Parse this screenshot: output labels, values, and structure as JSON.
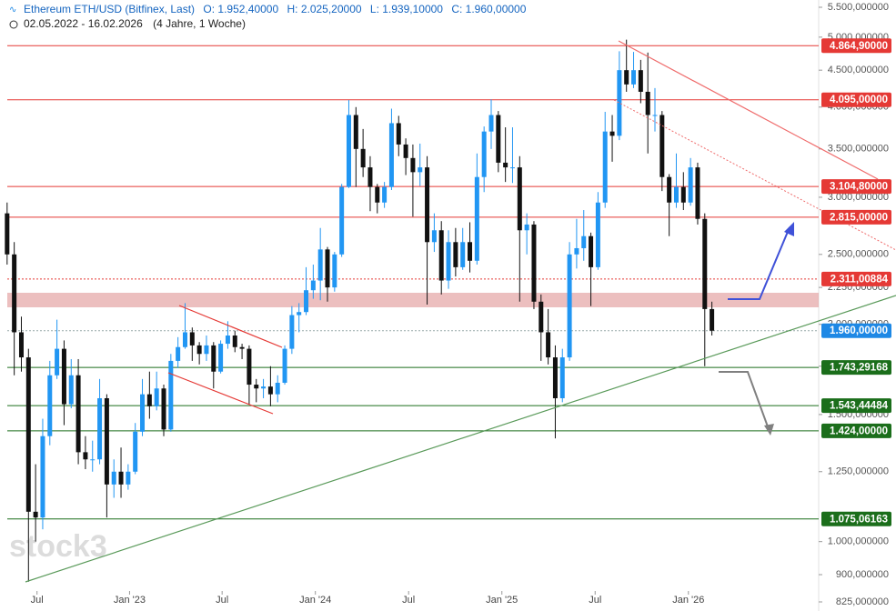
{
  "chart_data": {
    "type": "candlestick",
    "title": "Ethereum ETH/USD (Bitfinex, Last)",
    "ohlc_header": [
      "O: 1.952,40000",
      "H: 2.025,20000",
      "L: 1.939,10000",
      "C: 1.960,00000"
    ],
    "period": "02.05.2022 - 16.02.2026",
    "period_note": "(4 Jahre, 1 Woche)",
    "watermark": "stock3",
    "up_color": "#2196f3",
    "down_color": "#111111",
    "log_scale": true,
    "xlim": [
      -1,
      114
    ],
    "xticks": [
      {
        "value": 4.2,
        "label": "Jul"
      },
      {
        "value": 17.2,
        "label": "Jan '23"
      },
      {
        "value": 30.2,
        "label": "Jul"
      },
      {
        "value": 43.3,
        "label": "Jan '24"
      },
      {
        "value": 56.4,
        "label": "Jul"
      },
      {
        "value": 69.5,
        "label": "Jan '25"
      },
      {
        "value": 82.6,
        "label": "Jul"
      },
      {
        "value": 95.7,
        "label": "Jan '26"
      }
    ],
    "ylim": [
      825,
      5500
    ],
    "yticks": [
      {
        "value": 825,
        "label": "825,000000"
      },
      {
        "value": 900,
        "label": "900,000000"
      },
      {
        "value": 1000,
        "label": "1.000,000000"
      },
      {
        "value": 1250,
        "label": "1.250,000000"
      },
      {
        "value": 1500,
        "label": "1.500,000000"
      },
      {
        "value": 1750,
        "label": "1.750,000000"
      },
      {
        "value": 2000,
        "label": "2.000,000000"
      },
      {
        "value": 2250,
        "label": "2.250,000000"
      },
      {
        "value": 2500,
        "label": "2.500,000000"
      },
      {
        "value": 3000,
        "label": "3.000,000000"
      },
      {
        "value": 3500,
        "label": "3.500,000000"
      },
      {
        "value": 4000,
        "label": "4.000,000000"
      },
      {
        "value": 4500,
        "label": "4.500,000000"
      },
      {
        "value": 5000,
        "label": "5.000,000000"
      },
      {
        "value": 5500,
        "label": "5.500,000000"
      }
    ],
    "levels": [
      {
        "value": 4864.9,
        "label": "4.864,90000",
        "color": "#e53935",
        "dashed": false
      },
      {
        "value": 4095,
        "label": "4.095,00000",
        "color": "#e53935",
        "dashed": false
      },
      {
        "value": 3104.8,
        "label": "3.104,80000",
        "color": "#e53935",
        "dashed": false
      },
      {
        "value": 2815,
        "label": "2.815,00000",
        "color": "#e53935",
        "dashed": false
      },
      {
        "value": 2311.00884,
        "label": "2.311,00884",
        "color": "#e53935",
        "dashed": true
      },
      {
        "value": 1960,
        "label": "1.960,00000",
        "color": "#1e88e5",
        "dashed": true
      },
      {
        "value": 1743.29168,
        "label": "1.743,29168",
        "color": "#1b6e1b",
        "dashed": false
      },
      {
        "value": 1543.44484,
        "label": "1.543,44484",
        "color": "#1b6e1b",
        "dashed": false
      },
      {
        "value": 1424,
        "label": "1.424,00000",
        "color": "#1b6e1b",
        "dashed": false
      },
      {
        "value": 1075.06163,
        "label": "1.075,06163",
        "color": "#1b6e1b",
        "dashed": false
      }
    ],
    "open": [
      2850,
      2500,
      1950,
      1800,
      1100,
      1080,
      1400,
      1700,
      1850,
      1550,
      1700,
      1330,
      1300,
      1300,
      1580,
      1200,
      1250,
      1200,
      1250,
      1420,
      1600,
      1540,
      1630,
      1430,
      1780,
      1860,
      1950,
      1870,
      1820,
      1870,
      1720,
      1880,
      1930,
      1860,
      1850,
      1650,
      1630,
      1640,
      1600,
      1660,
      1850,
      2060,
      2080,
      2230,
      2300,
      2540,
      2250,
      2500,
      3100,
      3900,
      3500,
      3300,
      3100,
      2950,
      3100,
      3800,
      3550,
      3400,
      3250,
      3300,
      2600,
      2700,
      2300,
      2600,
      2400,
      2600,
      2450,
      3200,
      3700,
      3900,
      3350,
      3300,
      3300,
      2700,
      2750,
      2150,
      1950,
      1800,
      1580,
      1800,
      2500,
      2550,
      2650,
      2400,
      2950,
      3700,
      3650,
      4500,
      4300,
      4500,
      4200,
      3900,
      3900,
      3200,
      2950,
      3100,
      2950,
      3300,
      2800,
      2100
    ],
    "high": [
      2950,
      2600,
      2050,
      1850,
      1280,
      1480,
      1780,
      2030,
      1900,
      1790,
      1790,
      1400,
      1380,
      1680,
      1600,
      1300,
      1350,
      1280,
      1460,
      1680,
      1720,
      1720,
      1650,
      1820,
      1920,
      2140,
      1980,
      1890,
      1930,
      1890,
      1900,
      2020,
      1960,
      1880,
      1870,
      1680,
      1680,
      1750,
      1700,
      1870,
      2120,
      2140,
      2400,
      2420,
      2720,
      2560,
      2520,
      3130,
      4090,
      4000,
      3730,
      3420,
      3130,
      3150,
      3980,
      3890,
      3620,
      3550,
      3560,
      3420,
      2850,
      2780,
      2700,
      2720,
      2720,
      2770,
      3450,
      3760,
      4100,
      3950,
      3750,
      3750,
      3420,
      2850,
      2780,
      2200,
      2100,
      1870,
      1850,
      2600,
      2800,
      2880,
      2680,
      3050,
      3940,
      3900,
      4780,
      4960,
      4770,
      4650,
      4760,
      4250,
      3950,
      3230,
      3450,
      3250,
      3400,
      3350,
      2850,
      2150
    ],
    "low": [
      2420,
      1700,
      1720,
      880,
      1000,
      1040,
      1360,
      1680,
      1450,
      1530,
      1280,
      1260,
      1250,
      1280,
      1080,
      1150,
      1150,
      1180,
      1240,
      1400,
      1480,
      1520,
      1400,
      1420,
      1740,
      1850,
      1780,
      1760,
      1780,
      1630,
      1710,
      1850,
      1830,
      1790,
      1550,
      1560,
      1580,
      1540,
      1560,
      1650,
      1820,
      1950,
      2060,
      2170,
      2160,
      2150,
      2220,
      2480,
      3090,
      3100,
      3200,
      2870,
      2850,
      2900,
      3070,
      3420,
      3220,
      2820,
      3110,
      2130,
      2520,
      2200,
      2240,
      2330,
      2380,
      2360,
      2420,
      3050,
      3500,
      3250,
      3150,
      3140,
      2150,
      2500,
      2100,
      1780,
      1760,
      1390,
      1560,
      1780,
      2390,
      2450,
      2120,
      2380,
      2900,
      3360,
      3600,
      4200,
      4250,
      4050,
      3450,
      3700,
      3060,
      2650,
      2900,
      2880,
      2920,
      2750,
      1750,
      1930
    ],
    "close": [
      2500,
      1950,
      1800,
      1100,
      1080,
      1400,
      1700,
      1850,
      1550,
      1700,
      1330,
      1300,
      1300,
      1580,
      1200,
      1250,
      1200,
      1250,
      1420,
      1600,
      1540,
      1630,
      1430,
      1780,
      1860,
      1950,
      1870,
      1820,
      1870,
      1720,
      1880,
      1930,
      1860,
      1850,
      1650,
      1630,
      1640,
      1600,
      1660,
      1850,
      2060,
      2080,
      2230,
      2300,
      2540,
      2250,
      2500,
      3100,
      3900,
      3500,
      3300,
      3100,
      2950,
      3100,
      3800,
      3550,
      3400,
      3250,
      3300,
      2600,
      2700,
      2300,
      2600,
      2400,
      2600,
      2450,
      3200,
      3700,
      3900,
      3350,
      3300,
      3300,
      2700,
      2750,
      2150,
      1950,
      1800,
      1580,
      1800,
      2500,
      2550,
      2650,
      2400,
      2950,
      3700,
      3650,
      4500,
      4300,
      4500,
      4200,
      3900,
      3900,
      3200,
      2950,
      3100,
      2950,
      3300,
      2800,
      2100,
      1960
    ]
  }
}
